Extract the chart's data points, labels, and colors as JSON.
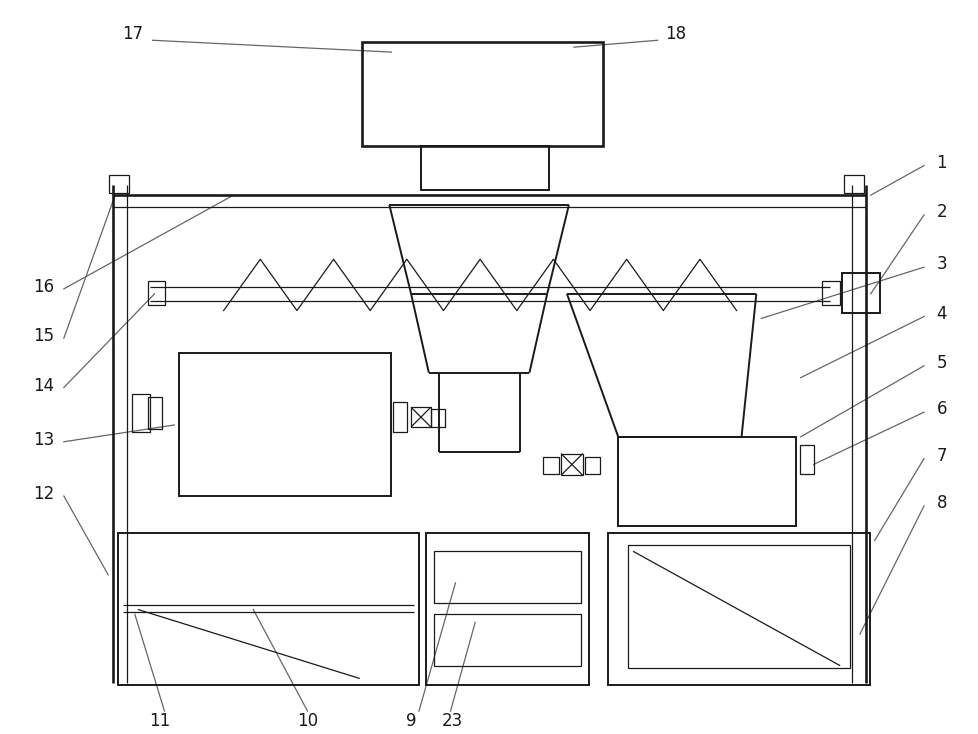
{
  "bg_color": "#ffffff",
  "lc": "#1a1a1a",
  "lw": 1.4,
  "tlw": 0.9,
  "fs": 12,
  "fig_w": 9.79,
  "fig_h": 7.34
}
